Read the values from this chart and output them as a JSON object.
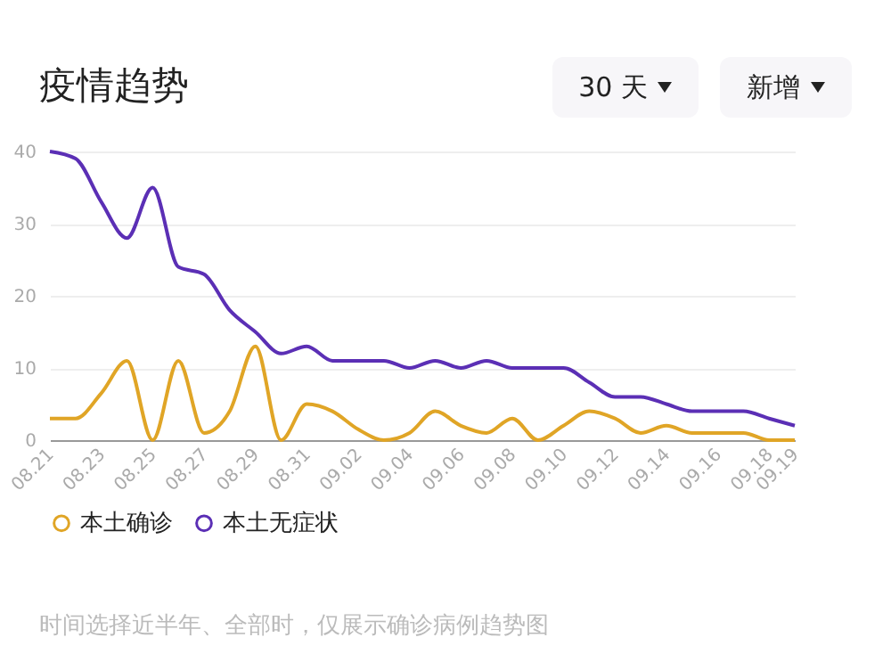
{
  "chart_data": {
    "type": "line",
    "title": "疫情趋势",
    "categories": [
      "08.21",
      null,
      "08.23",
      null,
      "08.25",
      null,
      "08.27",
      null,
      "08.29",
      null,
      "08.31",
      null,
      "09.02",
      null,
      "09.04",
      null,
      "09.06",
      null,
      "09.08",
      null,
      "09.10",
      null,
      "09.12",
      null,
      "09.14",
      null,
      "09.16",
      null,
      "09.18",
      "09.19"
    ],
    "series": [
      {
        "name": "本土确诊",
        "color": "#e0a526",
        "values": [
          3,
          3,
          6.5,
          11,
          0,
          11,
          1,
          4,
          13,
          0,
          5,
          4,
          1.5,
          0,
          1,
          4,
          2,
          1,
          3,
          0,
          2,
          4,
          3,
          1,
          2,
          1,
          1,
          1,
          0,
          0
        ]
      },
      {
        "name": "本土无症状",
        "color": "#5b2fb5",
        "values": [
          40,
          39,
          33,
          28,
          35,
          24,
          23,
          18,
          15,
          12,
          13,
          11,
          11,
          11,
          10,
          11,
          10,
          11,
          10,
          10,
          10,
          8,
          6,
          6,
          5,
          4,
          4,
          4,
          3,
          2
        ]
      }
    ],
    "ylim": [
      0,
      40
    ],
    "yticks": [
      0,
      10,
      20,
      30,
      40
    ],
    "grid": "y",
    "legend": "bottom",
    "marker": "none",
    "line_style": "solid",
    "annotations": [
      "30 天",
      "新增",
      "时间选择近半年、全部时，仅展示确诊病例趋势图"
    ]
  }
}
